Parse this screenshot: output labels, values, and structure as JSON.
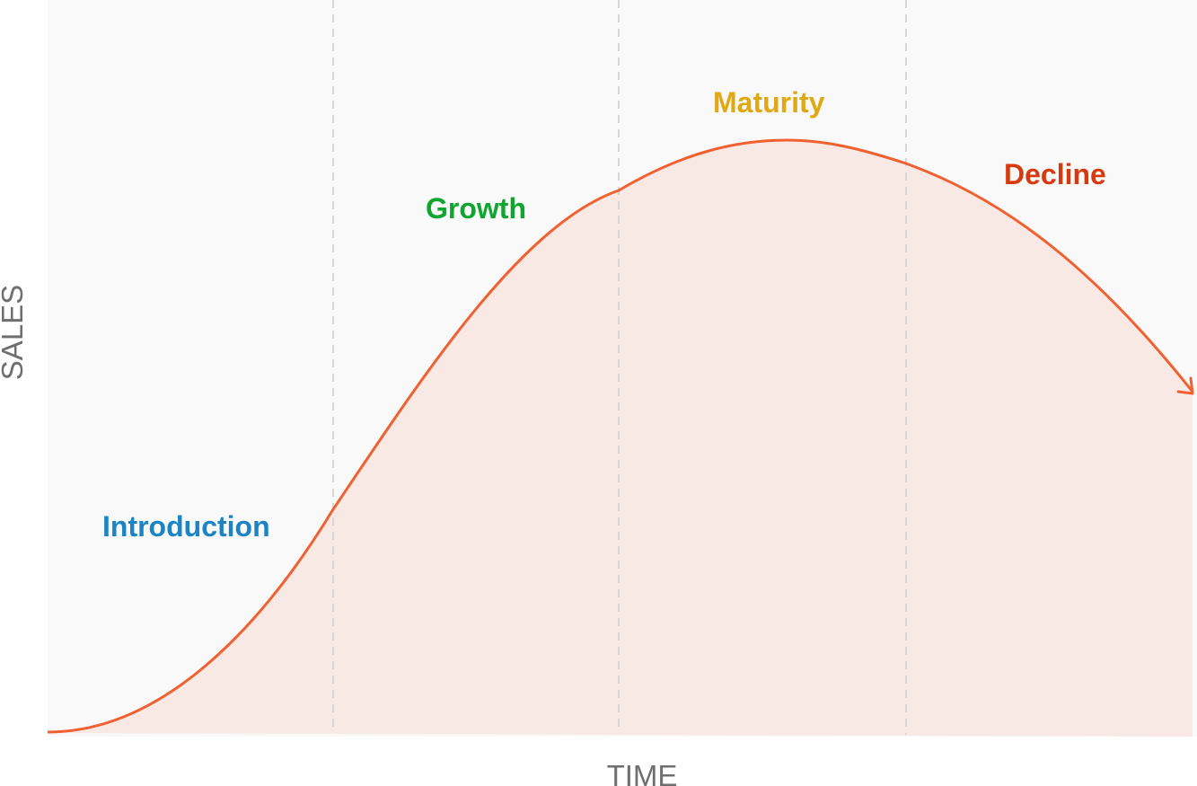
{
  "diagram": {
    "x_axis_label": "TIME",
    "y_axis_label": "SALES",
    "stages": [
      {
        "key": "introduction",
        "label": "Introduction",
        "color": "#1a84c4"
      },
      {
        "key": "growth",
        "label": "Growth",
        "color": "#0fa52f"
      },
      {
        "key": "maturity",
        "label": "Maturity",
        "color": "#e0a812"
      },
      {
        "key": "decline",
        "label": "Decline",
        "color": "#d83a0f"
      }
    ],
    "colors": {
      "plot_background": "#f9f9f9",
      "curve": "#f06030",
      "curve_fill": "#f9e9e4",
      "divider": "#d6d6d6"
    }
  }
}
